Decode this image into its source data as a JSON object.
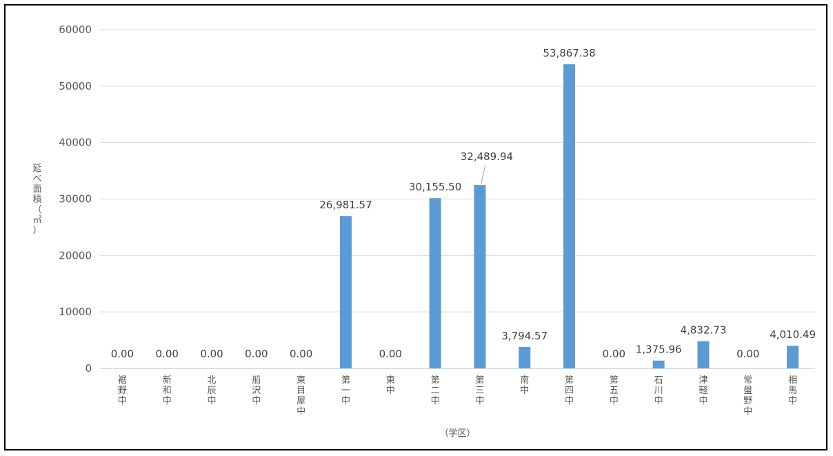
{
  "chart_data": {
    "type": "bar",
    "categories": [
      "裾野中",
      "新和中",
      "北辰中",
      "船沢中",
      "東目屋中",
      "第一中",
      "東中",
      "第二中",
      "第三中",
      "南中",
      "第四中",
      "第五中",
      "石川中",
      "津軽中",
      "常盤野中",
      "相馬中"
    ],
    "values": [
      0,
      0,
      0,
      0,
      0,
      26981.57,
      0,
      30155.5,
      32489.94,
      3794.57,
      53867.38,
      0,
      1375.96,
      4832.73,
      0,
      4010.49
    ],
    "data_labels": [
      "0.00",
      "0.00",
      "0.00",
      "0.00",
      "0.00",
      "26,981.57",
      "0.00",
      "30,155.50",
      "32,489.94",
      "3,794.57",
      "53,867.38",
      "0.00",
      "1,375.96",
      "4,832.73",
      "0.00",
      "4,010.49"
    ],
    "yticks": [
      "0",
      "10000",
      "20000",
      "30000",
      "40000",
      "50000",
      "60000"
    ],
    "ylim": [
      0,
      60000
    ],
    "xlabel": "（学区）",
    "ylabel": "延べ面積（㎡）",
    "grid": true,
    "legend": "none",
    "bar_color": "#5B9BD5",
    "grid_color": "#D9D9D9",
    "axis_color": "#BFBFBF"
  }
}
